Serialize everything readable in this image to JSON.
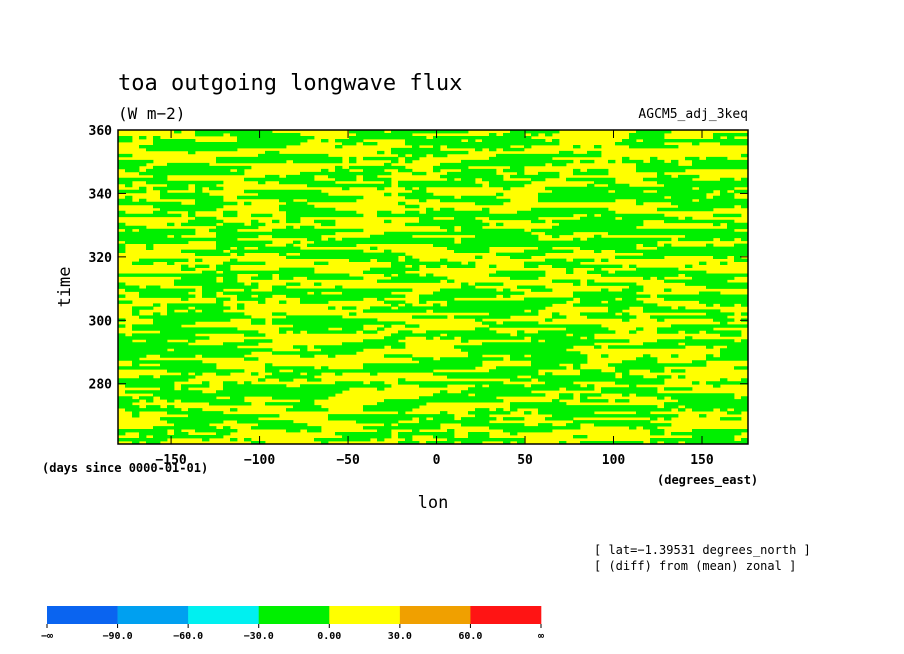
{
  "chart_data": {
    "type": "heatmap",
    "title": "toa outgoing longwave flux",
    "units": "(W m−2)",
    "run_name": "AGCM5_adj_3keq",
    "xlabel": "lon",
    "xunits": "(degrees_east)",
    "ylabel": "time",
    "yunits": "(days since 0000-01-01)",
    "xlim": [
      -180,
      176
    ],
    "ylim": [
      261,
      360
    ],
    "x_ticks": [
      {
        "value": -150,
        "label": "−150"
      },
      {
        "value": -100,
        "label": "−100"
      },
      {
        "value": -50,
        "label": "−50"
      },
      {
        "value": 0,
        "label": "0"
      },
      {
        "value": 50,
        "label": "50"
      },
      {
        "value": 100,
        "label": "100"
      },
      {
        "value": 150,
        "label": "150"
      }
    ],
    "y_ticks": [
      {
        "value": 280,
        "label": "280"
      },
      {
        "value": 300,
        "label": "300"
      },
      {
        "value": 320,
        "label": "320"
      },
      {
        "value": 340,
        "label": "340"
      },
      {
        "value": 360,
        "label": "360"
      }
    ],
    "annotations": [
      "[ lat=−1.39531 degrees_north ]",
      "[ (diff) from (mean) zonal ]"
    ],
    "colorbar": {
      "boundaries": [
        "−∞",
        "−90.0",
        "−60.0",
        "−30.0",
        "0.00",
        "30.0",
        "60.0",
        "∞"
      ],
      "colors": [
        "#0a64f0",
        "#00a0f0",
        "#00f0f0",
        "#00f000",
        "#ffff00",
        "#f0a000",
        "#ff1414"
      ]
    },
    "field_colors": {
      "negative": "#00f000",
      "positive": "#ffff00"
    }
  }
}
